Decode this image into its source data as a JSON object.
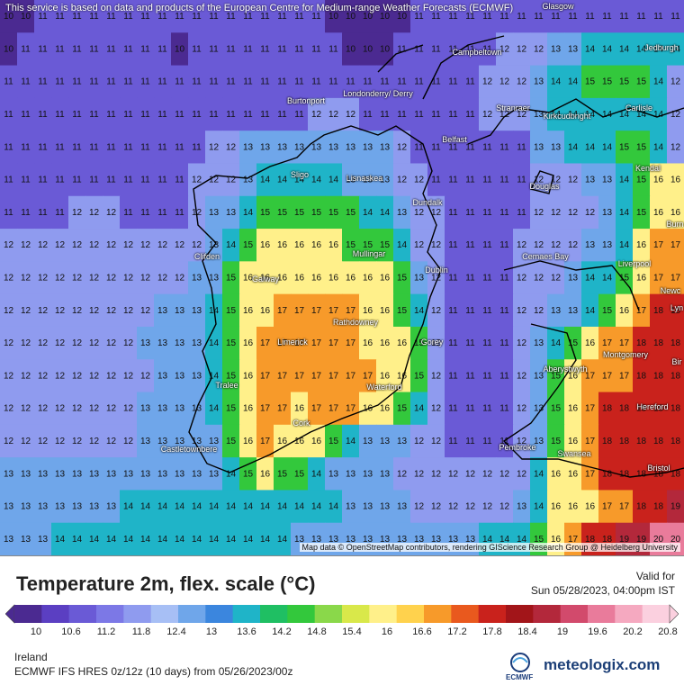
{
  "map": {
    "credit_top": "This service is based on data and products of the European Centre for Medium-range Weather Forecasts (ECMWF)",
    "credit_bottom": "Map data © OpenStreetMap contributors, rendering GIScience Research Group @ Heidelberg University",
    "places": [
      "Glasgow",
      "Jedburgh",
      "Campbeltown",
      "Londonderry/ Derry",
      "Burtonport",
      "Stranraer",
      "Kirkcudbright",
      "Carlisle",
      "Belfast",
      "Kendal",
      "Sligo",
      "Lisnaskea",
      "Douglas",
      "Dundalk",
      "Burn",
      "Clifden",
      "Mullingar",
      "Cemaes Bay",
      "Liverpool",
      "Dublin",
      "Galway",
      "Newc",
      "Lyn",
      "Rathdowney",
      "Limerick",
      "Gorey",
      "Aberystwyth",
      "Montgomery",
      "Bir",
      "Tralee",
      "Waterford",
      "Hereford",
      "Cork",
      "Pembroke",
      "Swansea",
      "Castletownbere",
      "Bristol"
    ],
    "value_grid": [
      [
        10,
        10,
        11,
        11,
        11,
        11,
        11,
        11,
        11,
        11,
        11,
        11,
        11,
        11,
        11,
        11,
        11,
        11,
        11,
        10,
        10,
        10,
        10,
        10,
        11,
        11,
        11,
        11,
        11,
        11,
        11,
        11,
        11,
        11,
        11,
        11,
        11,
        11,
        11,
        11
      ],
      [
        10,
        11,
        11,
        11,
        11,
        11,
        11,
        11,
        11,
        11,
        10,
        11,
        11,
        11,
        11,
        11,
        11,
        11,
        11,
        11,
        10,
        10,
        10,
        11,
        11,
        11,
        11,
        11,
        11,
        12,
        12,
        12,
        13,
        13,
        14,
        14,
        14,
        14,
        14,
        14
      ],
      [
        11,
        11,
        11,
        11,
        11,
        11,
        11,
        11,
        11,
        11,
        11,
        11,
        11,
        11,
        11,
        11,
        11,
        11,
        11,
        11,
        11,
        11,
        11,
        11,
        11,
        11,
        11,
        11,
        12,
        12,
        12,
        13,
        14,
        14,
        15,
        15,
        15,
        15,
        14,
        12
      ],
      [
        11,
        11,
        11,
        11,
        11,
        11,
        11,
        11,
        11,
        11,
        11,
        11,
        11,
        11,
        11,
        11,
        11,
        11,
        12,
        12,
        12,
        11,
        11,
        11,
        11,
        11,
        11,
        11,
        12,
        12,
        12,
        13,
        14,
        14,
        14,
        14,
        14,
        14,
        14,
        12
      ],
      [
        11,
        11,
        11,
        11,
        11,
        11,
        11,
        11,
        11,
        11,
        11,
        11,
        12,
        12,
        13,
        13,
        13,
        13,
        13,
        13,
        13,
        13,
        13,
        12,
        11,
        11,
        11,
        11,
        11,
        11,
        11,
        13,
        13,
        14,
        14,
        14,
        15,
        15,
        14,
        12
      ],
      [
        11,
        11,
        11,
        11,
        11,
        11,
        11,
        11,
        11,
        11,
        11,
        12,
        12,
        12,
        13,
        14,
        14,
        14,
        14,
        14,
        13,
        13,
        13,
        12,
        12,
        11,
        11,
        11,
        11,
        11,
        11,
        12,
        12,
        12,
        13,
        13,
        14,
        15,
        16,
        16
      ],
      [
        11,
        11,
        11,
        11,
        12,
        12,
        12,
        11,
        11,
        11,
        11,
        12,
        13,
        13,
        14,
        15,
        15,
        15,
        15,
        15,
        15,
        14,
        14,
        13,
        12,
        12,
        11,
        11,
        11,
        11,
        11,
        12,
        12,
        12,
        12,
        13,
        14,
        15,
        16,
        16
      ],
      [
        12,
        12,
        12,
        12,
        12,
        12,
        12,
        12,
        12,
        12,
        12,
        12,
        13,
        14,
        15,
        16,
        16,
        16,
        16,
        16,
        15,
        15,
        15,
        14,
        12,
        12,
        11,
        11,
        11,
        11,
        12,
        12,
        12,
        12,
        13,
        13,
        14,
        16,
        17,
        17
      ],
      [
        12,
        12,
        12,
        12,
        12,
        12,
        12,
        12,
        12,
        12,
        12,
        13,
        13,
        15,
        16,
        16,
        16,
        16,
        16,
        16,
        16,
        16,
        16,
        15,
        13,
        12,
        11,
        11,
        11,
        11,
        12,
        12,
        12,
        13,
        14,
        14,
        15,
        16,
        17,
        17
      ],
      [
        12,
        12,
        12,
        12,
        12,
        12,
        12,
        12,
        12,
        13,
        13,
        13,
        14,
        15,
        16,
        16,
        17,
        17,
        17,
        17,
        17,
        16,
        16,
        15,
        14,
        12,
        11,
        11,
        11,
        11,
        12,
        12,
        13,
        13,
        14,
        15,
        16,
        17,
        18,
        18
      ],
      [
        12,
        12,
        12,
        12,
        12,
        12,
        12,
        12,
        13,
        13,
        13,
        13,
        14,
        15,
        16,
        17,
        17,
        17,
        17,
        17,
        17,
        16,
        16,
        16,
        15,
        12,
        11,
        11,
        11,
        11,
        12,
        13,
        14,
        15,
        16,
        17,
        17,
        18,
        18,
        18
      ],
      [
        12,
        12,
        12,
        12,
        12,
        12,
        12,
        12,
        12,
        13,
        13,
        13,
        14,
        15,
        16,
        17,
        17,
        17,
        17,
        17,
        17,
        17,
        16,
        16,
        15,
        12,
        11,
        11,
        11,
        11,
        12,
        13,
        15,
        16,
        17,
        17,
        17,
        18,
        18,
        18
      ],
      [
        12,
        12,
        12,
        12,
        12,
        12,
        12,
        12,
        13,
        13,
        13,
        13,
        14,
        15,
        16,
        17,
        17,
        16,
        17,
        17,
        17,
        16,
        16,
        15,
        14,
        12,
        11,
        11,
        11,
        11,
        12,
        13,
        15,
        16,
        17,
        18,
        18,
        18,
        18,
        18
      ],
      [
        12,
        12,
        12,
        12,
        12,
        12,
        12,
        12,
        13,
        13,
        13,
        13,
        13,
        15,
        16,
        17,
        16,
        16,
        16,
        15,
        14,
        13,
        13,
        13,
        12,
        12,
        11,
        11,
        11,
        11,
        12,
        13,
        15,
        16,
        17,
        18,
        18,
        18,
        18,
        18
      ],
      [
        13,
        13,
        13,
        13,
        13,
        13,
        13,
        13,
        13,
        13,
        13,
        13,
        13,
        14,
        15,
        16,
        15,
        15,
        14,
        13,
        13,
        13,
        13,
        12,
        12,
        12,
        12,
        12,
        12,
        12,
        12,
        14,
        16,
        16,
        17,
        18,
        18,
        18,
        18,
        18
      ],
      [
        13,
        13,
        13,
        13,
        13,
        13,
        13,
        14,
        14,
        14,
        14,
        14,
        14,
        14,
        14,
        14,
        14,
        14,
        14,
        14,
        13,
        13,
        13,
        13,
        12,
        12,
        12,
        12,
        12,
        12,
        13,
        14,
        16,
        16,
        16,
        17,
        17,
        18,
        18,
        19
      ],
      [
        13,
        13,
        13,
        14,
        14,
        14,
        14,
        14,
        14,
        14,
        14,
        14,
        14,
        14,
        14,
        14,
        14,
        13,
        13,
        13,
        13,
        13,
        13,
        13,
        13,
        13,
        13,
        13,
        14,
        14,
        14,
        15,
        16,
        17,
        18,
        18,
        19,
        19,
        20,
        20
      ]
    ]
  },
  "legend": {
    "title": "Temperature 2m, flex. scale (°C)",
    "valid_label": "Valid for",
    "valid_time": "Sun 05/28/2023, 04:00pm IST",
    "ticks": [
      "10",
      "10.6",
      "11.2",
      "11.8",
      "12.4",
      "13",
      "13.6",
      "14.2",
      "14.8",
      "15.4",
      "16",
      "16.6",
      "17.2",
      "17.8",
      "18.4",
      "19",
      "19.6",
      "20.2",
      "20.8"
    ],
    "colors": [
      "#4b2a91",
      "#5b3fc2",
      "#6a5ad6",
      "#7c78e6",
      "#8f9bef",
      "#a7bff5",
      "#6fa6ea",
      "#3b86de",
      "#1fb4c8",
      "#1fbf63",
      "#33c83c",
      "#8ad84a",
      "#d9e84a",
      "#fff08a",
      "#ffd24d",
      "#f79a2a",
      "#e9591e",
      "#c9221c",
      "#a21519",
      "#b3283b",
      "#d24a6c",
      "#e97b9b",
      "#f5a9c0",
      "#fbd0df"
    ]
  },
  "footer": {
    "region": "Ireland",
    "model": "ECMWF IFS HRES 0z/12z (10 days) from 05/26/2023/00z",
    "ecmwf_label": "ECMWF",
    "brand": "meteologix.com"
  }
}
